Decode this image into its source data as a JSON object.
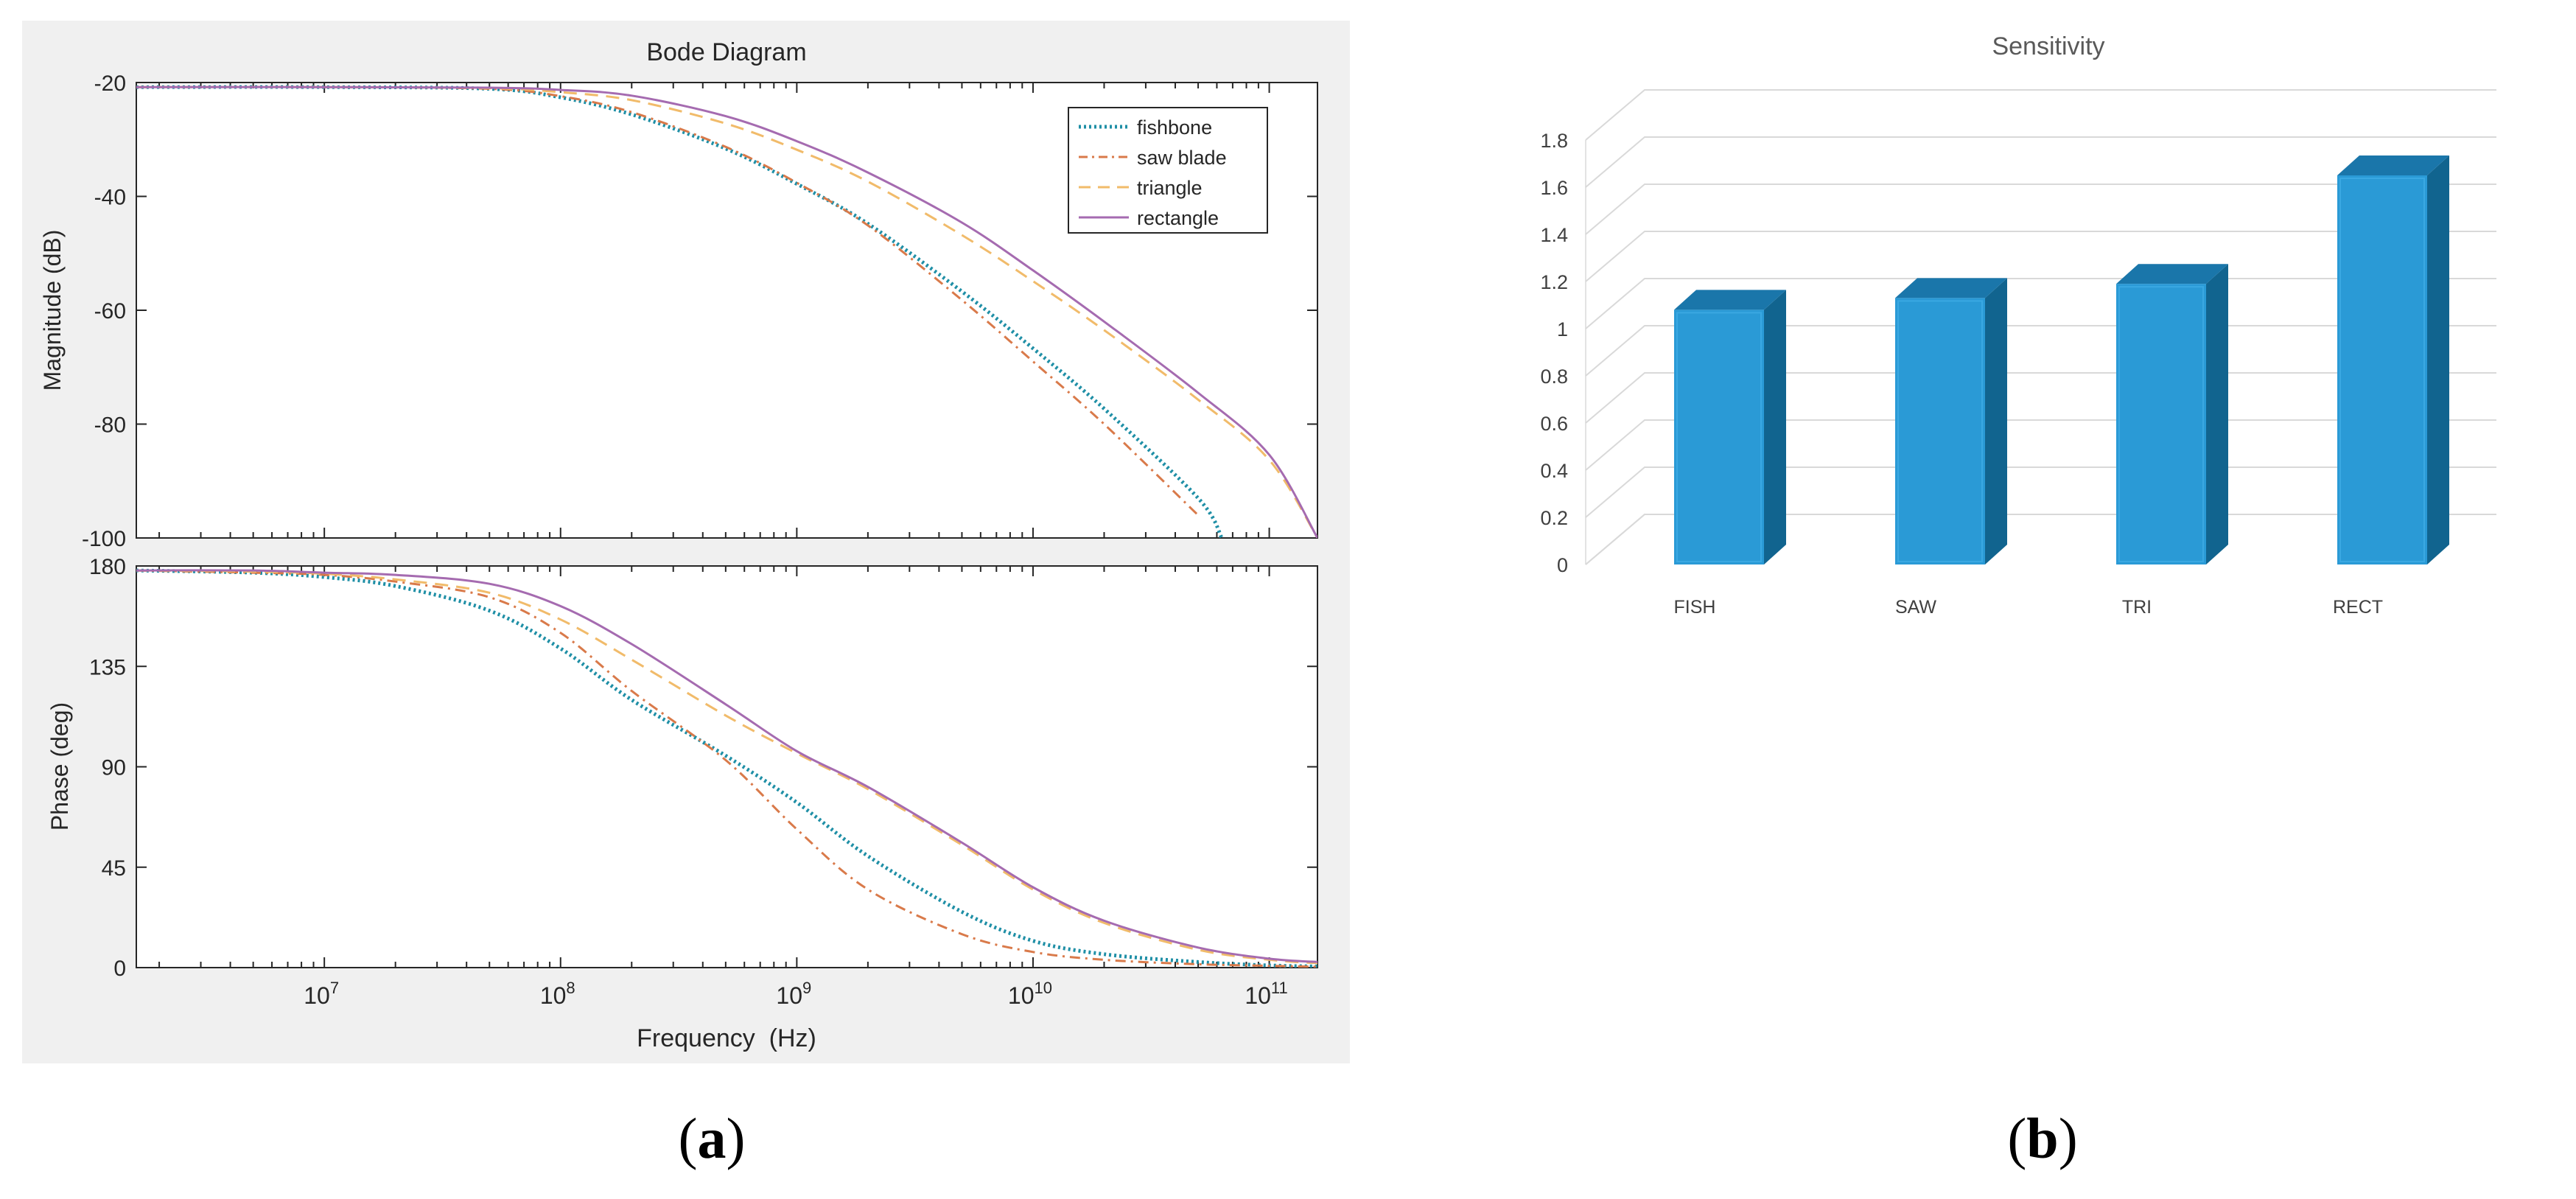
{
  "panel_a": {
    "caption_open": "(",
    "caption_letter": "a",
    "caption_close": ")"
  },
  "panel_b": {
    "caption_open": "(",
    "caption_letter": "b",
    "caption_close": ")"
  },
  "colors": {
    "fishbone": "#1f8fa6",
    "saw_blade": "#d97a4a",
    "triangle": "#f1bb6a",
    "rectangle": "#a56bb0",
    "bar_front": "#2a9ad6",
    "bar_side": "#11648f",
    "bar_top": "#1a76aa",
    "matlab_bg": "#f0f0f0"
  },
  "chart_data": [
    {
      "type": "line",
      "title": "Bode Diagram",
      "subplot": "magnitude",
      "xlabel": "Frequency  (Hz)",
      "ylabel": "Magnitude (dB)",
      "xscale": "log",
      "xlim": [
        1600000,
        160000000000
      ],
      "ylim": [
        -100,
        -20
      ],
      "yticks": [
        "-20",
        "-40",
        "-60",
        "-80",
        "-100"
      ],
      "legend_position": "top-right",
      "series": [
        {
          "name": "fishbone",
          "key": "fishbone",
          "style": "dotted",
          "x": [
            1600000,
            10000000,
            50000000,
            100000000,
            200000000,
            500000000,
            1000000000,
            2000000000,
            5000000000,
            10000000000,
            20000000000,
            50000000000,
            63000000000
          ],
          "y": [
            -20.8,
            -20.8,
            -21.1,
            -22.6,
            -25.6,
            -31.6,
            -37.8,
            -44.8,
            -56.7,
            -66.7,
            -77.3,
            -93.0,
            -100.0
          ]
        },
        {
          "name": "saw blade",
          "key": "saw_blade",
          "style": "dashdot",
          "x": [
            1600000,
            10000000,
            50000000,
            100000000,
            200000000,
            500000000,
            1000000000,
            2000000000,
            5000000000,
            10000000000,
            20000000000,
            50000000000
          ],
          "y": [
            -20.8,
            -20.8,
            -21.1,
            -22.4,
            -25.2,
            -31.3,
            -37.6,
            -45.1,
            -58.2,
            -69.0,
            -80.0,
            -96.0
          ]
        },
        {
          "name": "triangle",
          "key": "triangle",
          "style": "dashed",
          "x": [
            1600000,
            10000000,
            50000000,
            100000000,
            200000000,
            500000000,
            1000000000,
            2000000000,
            5000000000,
            10000000000,
            20000000000,
            50000000000,
            100000000000,
            160000000000
          ],
          "y": [
            -20.8,
            -20.8,
            -21.0,
            -21.7,
            -23.1,
            -27.2,
            -31.8,
            -37.4,
            -46.8,
            -54.9,
            -63.5,
            -75.7,
            -86.3,
            -100.0
          ]
        },
        {
          "name": "rectangle",
          "key": "rectangle",
          "style": "solid",
          "x": [
            1600000,
            10000000,
            50000000,
            100000000,
            200000000,
            500000000,
            1000000000,
            2000000000,
            5000000000,
            10000000000,
            20000000000,
            50000000000,
            100000000000,
            160000000000
          ],
          "y": [
            -20.8,
            -20.8,
            -20.9,
            -21.3,
            -22.3,
            -25.9,
            -30.3,
            -35.8,
            -44.6,
            -53.0,
            -62.0,
            -74.5,
            -85.4,
            -100.0
          ]
        }
      ]
    },
    {
      "type": "line",
      "subplot": "phase",
      "xlabel": "Frequency  (Hz)",
      "ylabel": "Phase (deg)",
      "xscale": "log",
      "xlim": [
        1600000,
        160000000000
      ],
      "ylim": [
        0,
        180
      ],
      "yticks": [
        "180",
        "135",
        "90",
        "45",
        "0"
      ],
      "xticks": [
        {
          "value": 10000000,
          "base": "10",
          "exp": "7"
        },
        {
          "value": 100000000,
          "base": "10",
          "exp": "8"
        },
        {
          "value": 1000000000,
          "base": "10",
          "exp": "9"
        },
        {
          "value": 10000000000,
          "base": "10",
          "exp": "10"
        },
        {
          "value": 100000000000,
          "base": "10",
          "exp": "11"
        }
      ],
      "series": [
        {
          "name": "fishbone",
          "key": "fishbone",
          "style": "dotted",
          "x": [
            1600000,
            5000000,
            10000000,
            20000000,
            50000000,
            100000000,
            200000000,
            500000000,
            1000000000,
            2000000000,
            5000000000,
            10000000000,
            20000000000,
            50000000000,
            100000000000,
            160000000000
          ],
          "y": [
            178,
            177,
            175,
            171,
            160,
            143,
            120,
            95,
            74,
            50,
            25,
            12,
            6,
            2.5,
            1,
            0.5
          ]
        },
        {
          "name": "saw blade",
          "key": "saw_blade",
          "style": "dashdot",
          "x": [
            1600000,
            5000000,
            10000000,
            20000000,
            50000000,
            100000000,
            200000000,
            500000000,
            1000000000,
            2000000000,
            5000000000,
            10000000000,
            20000000000,
            50000000000,
            100000000000,
            160000000000
          ],
          "y": [
            178,
            177,
            176,
            173,
            166,
            150,
            124,
            93,
            62,
            35,
            15,
            7,
            3.5,
            1.5,
            0.8,
            0.4
          ]
        },
        {
          "name": "triangle",
          "key": "triangle",
          "style": "dashed",
          "x": [
            1600000,
            5000000,
            10000000,
            20000000,
            50000000,
            100000000,
            200000000,
            500000000,
            1000000000,
            2000000000,
            5000000000,
            10000000000,
            20000000000,
            50000000000,
            100000000000,
            160000000000
          ],
          "y": [
            178,
            177.5,
            176.5,
            174,
            168,
            156,
            138,
            113,
            96,
            80,
            55,
            35,
            20,
            8,
            3.5,
            2
          ]
        },
        {
          "name": "rectangle",
          "key": "rectangle",
          "style": "solid",
          "x": [
            1600000,
            5000000,
            10000000,
            20000000,
            50000000,
            100000000,
            200000000,
            500000000,
            1000000000,
            2000000000,
            5000000000,
            10000000000,
            20000000000,
            50000000000,
            100000000000,
            160000000000
          ],
          "y": [
            178,
            178,
            177,
            176,
            172,
            162,
            145,
            118,
            97,
            81,
            56,
            36,
            21,
            9,
            4,
            2.5
          ]
        }
      ]
    },
    {
      "type": "bar",
      "title": "Sensitivity",
      "categories": [
        "FISH",
        "SAW",
        "TRI",
        "RECT"
      ],
      "values": [
        1.08,
        1.13,
        1.19,
        1.65
      ],
      "ylim": [
        0,
        1.8
      ],
      "yticks": [
        "0",
        "0.2",
        "0.4",
        "0.6",
        "0.8",
        "1",
        "1.2",
        "1.4",
        "1.6",
        "1.8"
      ],
      "grid": true,
      "style": "3d"
    }
  ]
}
